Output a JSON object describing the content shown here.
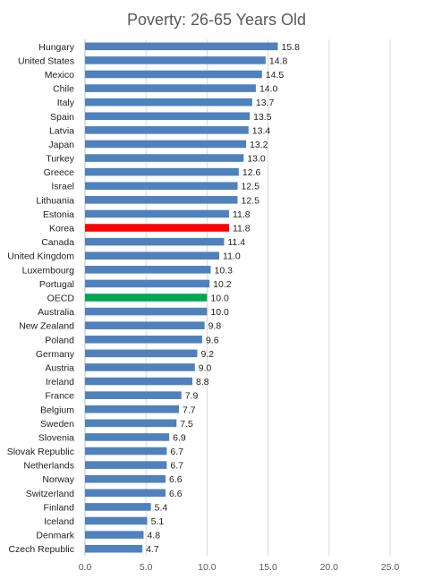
{
  "chart_data": {
    "type": "bar",
    "orientation": "horizontal",
    "title": "Poverty: 26-65 Years Old",
    "xlabel": "",
    "ylabel": "",
    "xlim": [
      0,
      25
    ],
    "x_ticks": [
      "0.0",
      "5.0",
      "10.0",
      "15.0",
      "20.0",
      "25.0"
    ],
    "grid": true,
    "legend": "none",
    "colors": {
      "default": "#4f81bd",
      "Korea": "#ff0000",
      "OECD": "#00a650"
    },
    "categories": [
      "Hungary",
      "United States",
      "Mexico",
      "Chile",
      "Italy",
      "Spain",
      "Latvia",
      "Japan",
      "Turkey",
      "Greece",
      "Israel",
      "Lithuania",
      "Estonia",
      "Korea",
      "Canada",
      "United Kingdom",
      "Luxembourg",
      "Portugal",
      "OECD",
      "Australia",
      "New Zealand",
      "Poland",
      "Germany",
      "Austria",
      "Ireland",
      "France",
      "Belgium",
      "Sweden",
      "Slovenia",
      "Slovak Republic",
      "Netherlands",
      "Norway",
      "Switzerland",
      "Finland",
      "Iceland",
      "Denmark",
      "Czech Republic"
    ],
    "values": [
      15.8,
      14.8,
      14.5,
      14.0,
      13.7,
      13.5,
      13.4,
      13.2,
      13.0,
      12.6,
      12.5,
      12.5,
      11.8,
      11.8,
      11.4,
      11.0,
      10.3,
      10.2,
      10.0,
      10.0,
      9.8,
      9.6,
      9.2,
      9.0,
      8.8,
      7.9,
      7.7,
      7.5,
      6.9,
      6.7,
      6.7,
      6.6,
      6.6,
      5.4,
      5.1,
      4.8,
      4.7
    ],
    "value_labels": [
      "15.8",
      "14.8",
      "14.5",
      "14.0",
      "13.7",
      "13.5",
      "13.4",
      "13.2",
      "13.0",
      "12.6",
      "12.5",
      "12.5",
      "11.8",
      "11.8",
      "11.4",
      "11.0",
      "10.3",
      "10.2",
      "10.0",
      "10.0",
      "9.8",
      "9.6",
      "9.2",
      "9.0",
      "8.8",
      "7.9",
      "7.7",
      "7.5",
      "6.9",
      "6.7",
      "6.7",
      "6.6",
      "6.6",
      "5.4",
      "5.1",
      "4.8",
      "4.7"
    ]
  }
}
